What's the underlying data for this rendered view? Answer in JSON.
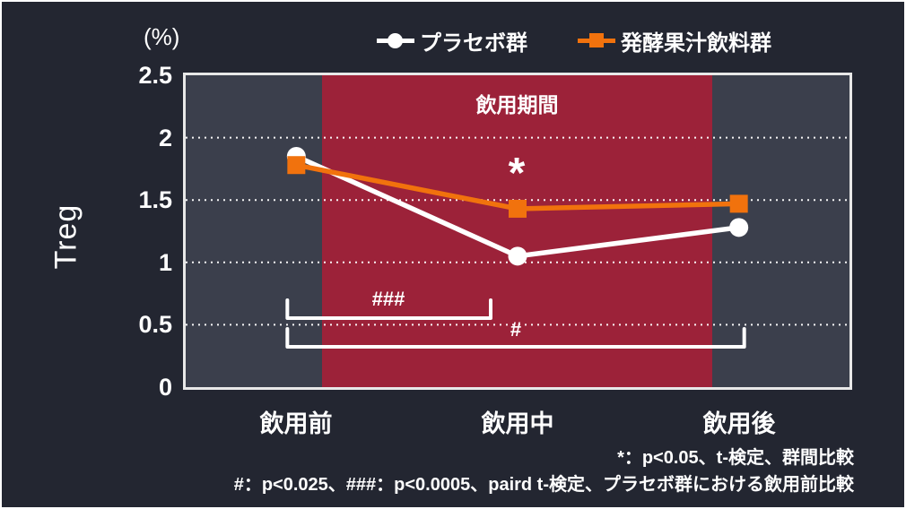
{
  "chart_data": {
    "type": "line",
    "unit_label": "(%)",
    "y_axis_title": "Treg",
    "categories": [
      "飲用前",
      "飲用中",
      "飲用後"
    ],
    "y_ticks": [
      "2.5",
      "2",
      "1.5",
      "1",
      "0.5",
      "0"
    ],
    "ylim": [
      0,
      2.5
    ],
    "gridlines_at": [
      0.5,
      1.0,
      1.5,
      2.0
    ],
    "grid_style": "dotted",
    "legend_position": "top",
    "series": [
      {
        "name": "プラセボ群",
        "marker": "circle",
        "color": "#ffffff",
        "values": [
          1.85,
          1.05,
          1.28
        ]
      },
      {
        "name": "発酵果汁飲料群",
        "marker": "square",
        "color": "#f1720d",
        "values": [
          1.78,
          1.43,
          1.47
        ]
      }
    ],
    "shaded_region": {
      "label": "飲用期間",
      "color": "#9c2239",
      "spans": "飲用前〜飲用後の飲用期間"
    },
    "annotations": {
      "asterisk": {
        "symbol": "*",
        "at": "飲用中",
        "series": "発酵果汁飲料群"
      },
      "brackets": [
        {
          "label": "###",
          "from": "飲用前",
          "to": "飲用中"
        },
        {
          "label": "#",
          "from": "飲用前",
          "to": "飲用後"
        }
      ]
    }
  },
  "footnotes": {
    "line1": "*：p<0.05、t-検定、群間比較",
    "line2": "#：p<0.025、###：p<0.0005、paird t-検定、プラセボ群における飲用前比較"
  },
  "colors": {
    "background": "#232631",
    "plot_background": "#3b3f4c",
    "shade": "#9c2239",
    "series_placebo": "#ffffff",
    "series_juice": "#f1720d",
    "text": "#ffffff",
    "plot_border": "#e8e8e8"
  }
}
